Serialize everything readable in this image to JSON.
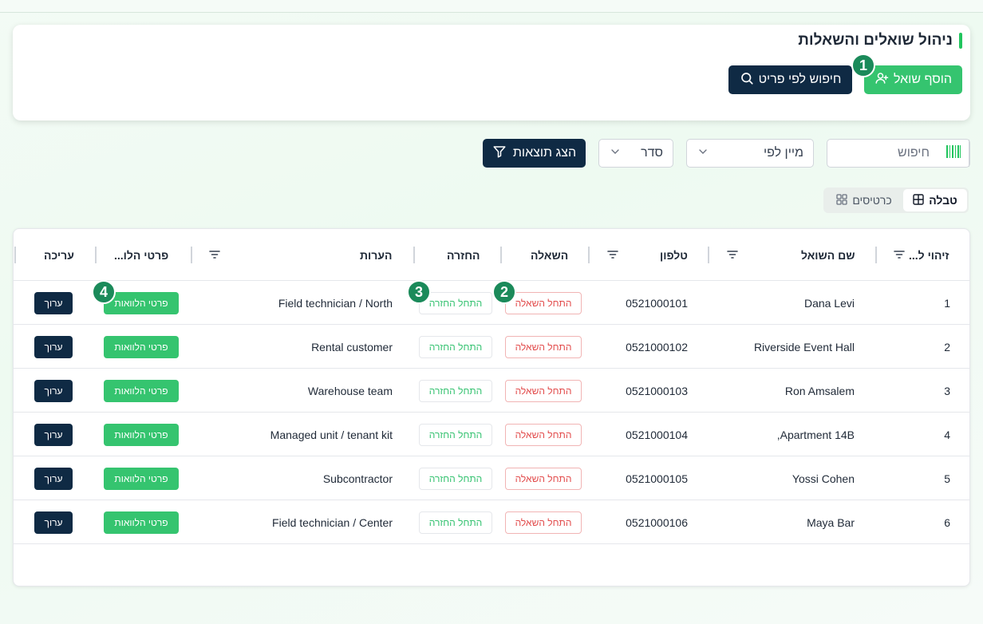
{
  "header": {
    "title": "ניהול שואלים והשאלות",
    "add_borrower": "הוסף שואל",
    "search_by_item": "חיפוש לפי פריט"
  },
  "steps": [
    "1",
    "2",
    "3",
    "4"
  ],
  "toolbar": {
    "search_placeholder": "חיפוש",
    "sort_by": "מיין לפי",
    "order": "סדר",
    "show_results": "הצג תוצאות"
  },
  "views": {
    "table": "טבלה",
    "cards": "כרטיסים"
  },
  "table": {
    "columns": {
      "id": "זיהוי ל...",
      "name": "שם השואל",
      "phone": "טלפון",
      "loan": "השאלה",
      "return": "החזרה",
      "notes": "הערות",
      "loan_details": "פרטי הלו...",
      "edit": "עריכה"
    },
    "rows": [
      {
        "id": "1",
        "name": "Dana Levi",
        "phone": "0521000101",
        "loan": "התחל השאלה",
        "return": "התחל החזרה",
        "notes": "Field technician / North",
        "details": "פרטי הלוואות",
        "edit": "ערוך"
      },
      {
        "id": "2",
        "name": "Riverside Event Hall",
        "phone": "0521000102",
        "loan": "התחל השאלה",
        "return": "התחל החזרה",
        "notes": "Rental customer",
        "details": "פרטי הלוואות",
        "edit": "ערוך"
      },
      {
        "id": "3",
        "name": "Ron Amsalem",
        "phone": "0521000103",
        "loan": "התחל השאלה",
        "return": "התחל החזרה",
        "notes": "Warehouse team",
        "details": "פרטי הלוואות",
        "edit": "ערוך"
      },
      {
        "id": "4",
        "name": "Apartment 14B,",
        "phone": "0521000104",
        "loan": "התחל השאלה",
        "return": "התחל החזרה",
        "notes": "Managed unit / tenant kit",
        "details": "פרטי הלוואות",
        "edit": "ערוך"
      },
      {
        "id": "5",
        "name": "Yossi Cohen",
        "phone": "0521000105",
        "loan": "התחל השאלה",
        "return": "התחל החזרה",
        "notes": "Subcontractor",
        "details": "פרטי הלוואות",
        "edit": "ערוך"
      },
      {
        "id": "6",
        "name": "Maya Bar",
        "phone": "0521000106",
        "loan": "התחל השאלה",
        "return": "התחל החזרה",
        "notes": "Field technician / Center",
        "details": "פרטי הלוואות",
        "edit": "ערוך"
      }
    ]
  },
  "colors": {
    "accent_green": "#35c46f",
    "navy": "#0f2a44",
    "loan_red": "#e24b4b",
    "badge_green": "#1b8a5a"
  }
}
